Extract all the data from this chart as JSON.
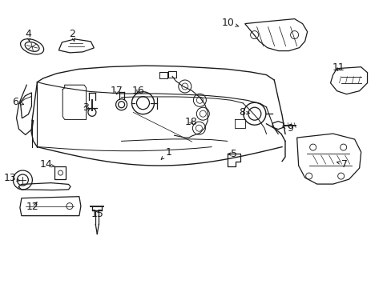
{
  "background_color": "#ffffff",
  "line_color": "#1a1a1a",
  "line_width": 0.9,
  "label_fontsize": 9,
  "figsize": [
    4.89,
    3.6
  ],
  "dpi": 100,
  "labels": {
    "1": [
      0.43,
      0.53,
      0.41,
      0.555
    ],
    "2": [
      0.185,
      0.118,
      0.19,
      0.145
    ],
    "3": [
      0.218,
      0.375,
      0.222,
      0.355
    ],
    "4": [
      0.072,
      0.118,
      0.075,
      0.145
    ],
    "5": [
      0.598,
      0.535,
      0.58,
      0.535
    ],
    "6": [
      0.04,
      0.355,
      0.068,
      0.365
    ],
    "7": [
      0.88,
      0.57,
      0.858,
      0.562
    ],
    "8": [
      0.618,
      0.39,
      0.638,
      0.393
    ],
    "9": [
      0.74,
      0.445,
      0.72,
      0.438
    ],
    "10": [
      0.582,
      0.078,
      0.61,
      0.092
    ],
    "11": [
      0.865,
      0.235,
      0.858,
      0.255
    ],
    "12": [
      0.082,
      0.718,
      0.1,
      0.695
    ],
    "13": [
      0.025,
      0.618,
      0.052,
      0.628
    ],
    "14": [
      0.118,
      0.572,
      0.14,
      0.578
    ],
    "15": [
      0.248,
      0.742,
      0.24,
      0.722
    ],
    "16": [
      0.352,
      0.315,
      0.348,
      0.332
    ],
    "17": [
      0.298,
      0.315,
      0.298,
      0.338
    ],
    "18": [
      0.488,
      0.425,
      0.498,
      0.435
    ]
  }
}
